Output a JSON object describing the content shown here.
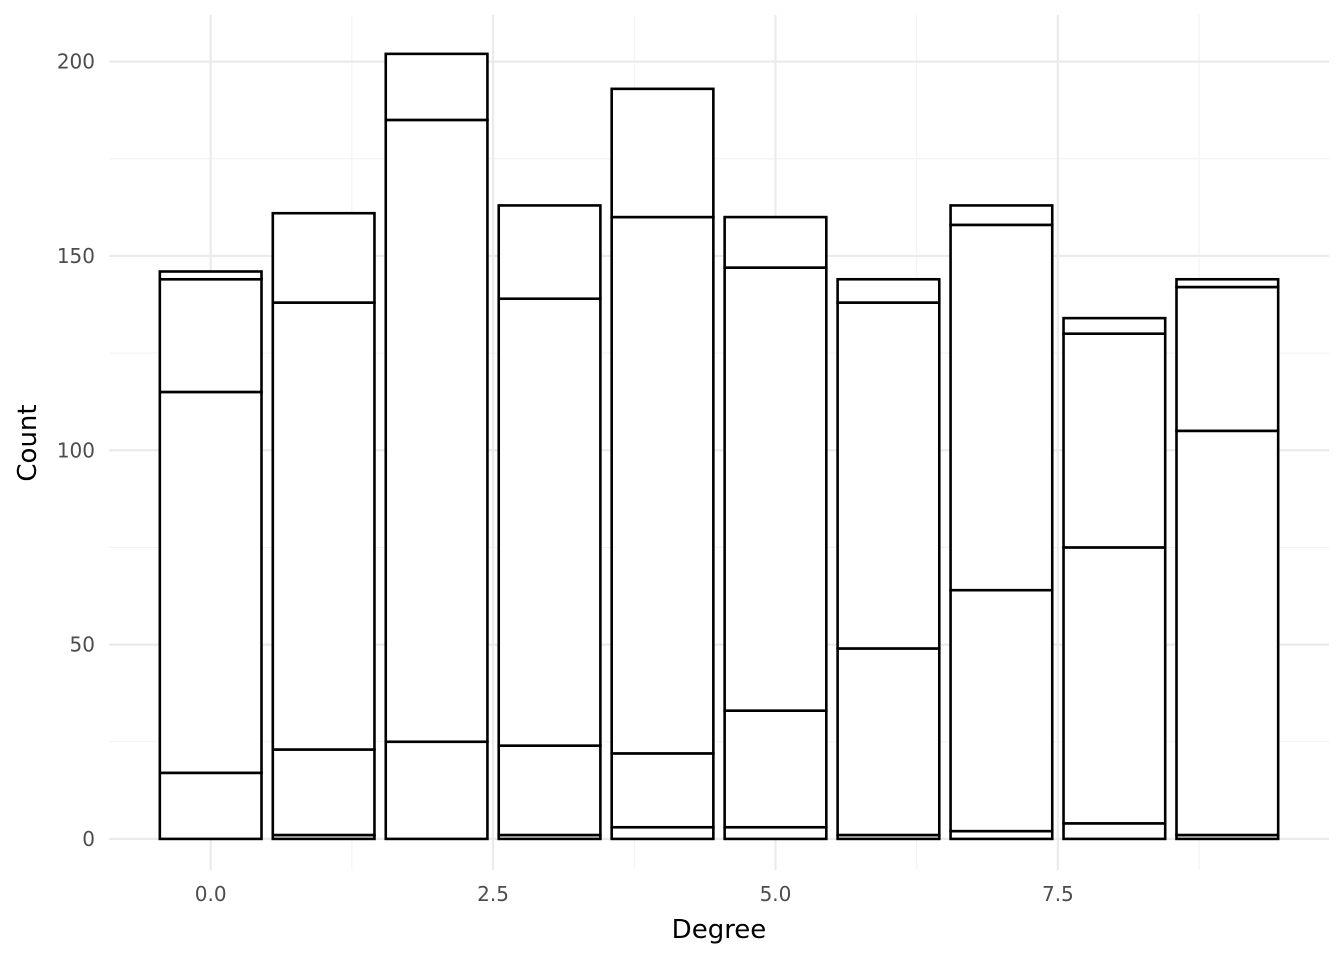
{
  "chart_data": {
    "type": "bar",
    "stacked": true,
    "xlabel": "Degree",
    "ylabel": "Count",
    "xlim": [
      -0.9,
      9.9
    ],
    "ylim": [
      -8,
      212
    ],
    "x_ticks": [
      0.0,
      2.5,
      5.0,
      7.5
    ],
    "x_tick_labels": [
      "0.0",
      "2.5",
      "5.0",
      "7.5"
    ],
    "y_ticks": [
      0,
      50,
      100,
      150,
      200
    ],
    "y_tick_labels": [
      "0",
      "50",
      "100",
      "150",
      "200"
    ],
    "grid": true,
    "bar_width": 0.9,
    "bars": [
      {
        "x": 0,
        "boundaries": [
          0,
          17,
          115,
          144,
          146
        ]
      },
      {
        "x": 1,
        "boundaries": [
          0,
          1,
          23,
          138,
          161
        ]
      },
      {
        "x": 2,
        "boundaries": [
          0,
          25,
          185,
          202
        ]
      },
      {
        "x": 3,
        "boundaries": [
          0,
          1,
          24,
          139,
          163
        ]
      },
      {
        "x": 4,
        "boundaries": [
          0,
          3,
          22,
          160,
          193
        ]
      },
      {
        "x": 5,
        "boundaries": [
          0,
          3,
          33,
          147,
          160
        ]
      },
      {
        "x": 6,
        "boundaries": [
          0,
          1,
          49,
          138,
          144
        ]
      },
      {
        "x": 7,
        "boundaries": [
          0,
          2,
          64,
          158,
          163
        ]
      },
      {
        "x": 8,
        "boundaries": [
          0,
          4,
          75,
          130,
          134
        ]
      },
      {
        "x": 9,
        "boundaries": [
          0,
          1,
          105,
          142,
          144
        ]
      }
    ],
    "colors": {
      "fill": "#ffffff",
      "outline": "#000000",
      "grid": "#ebebeb"
    }
  }
}
